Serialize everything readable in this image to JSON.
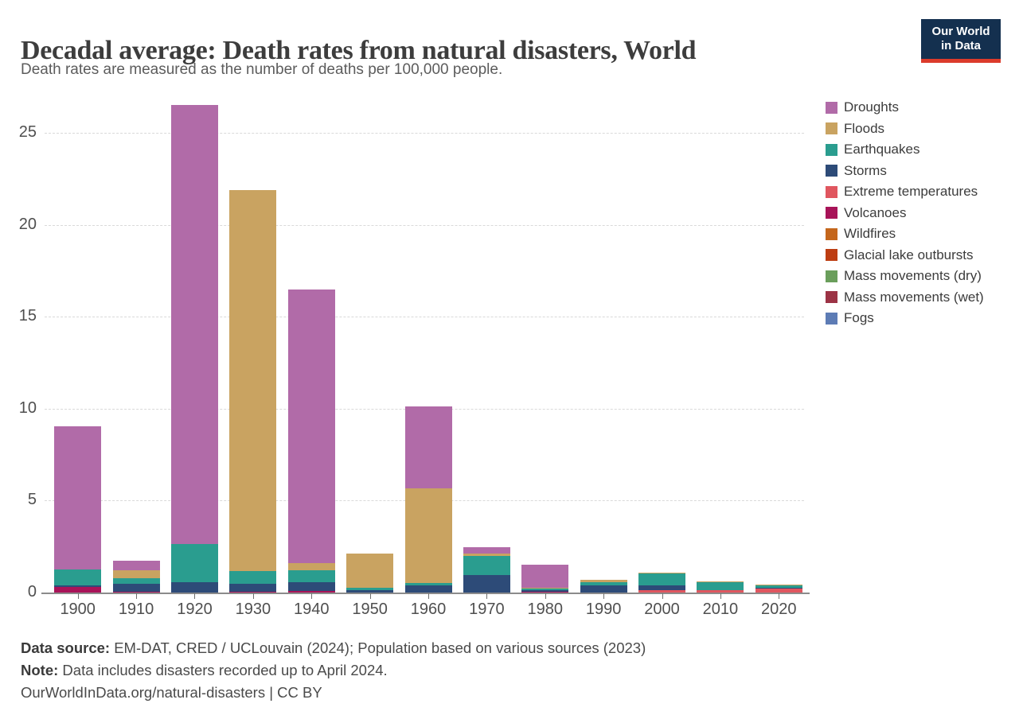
{
  "header": {
    "title": "Decadal average: Death rates from natural disasters, World",
    "subtitle": "Death rates are measured as the number of deaths per 100,000 people.",
    "logo": {
      "line1": "Our World",
      "line2": "in Data",
      "bg_color": "#14304f",
      "accent_color": "#dc3b2b"
    }
  },
  "chart_data": {
    "type": "bar",
    "stacked": true,
    "title": "Decadal average: Death rates from natural disasters, World",
    "xlabel": "",
    "ylabel": "Deaths per 100,000 people",
    "ylim": [
      0,
      26.6
    ],
    "yticks": [
      0,
      5,
      10,
      15,
      20,
      25
    ],
    "grid": "horizontal-dashed",
    "legend_position": "right",
    "categories": [
      "1900",
      "1910",
      "1920",
      "1930",
      "1940",
      "1950",
      "1960",
      "1970",
      "1980",
      "1990",
      "2000",
      "2010",
      "2020"
    ],
    "stack_order_bottom_to_top": [
      "Fogs",
      "Mass movements (wet)",
      "Mass movements (dry)",
      "Glacial lake outbursts",
      "Wildfires",
      "Volcanoes",
      "Extreme temperatures",
      "Storms",
      "Earthquakes",
      "Floods",
      "Droughts"
    ],
    "series": [
      {
        "label": "Droughts",
        "color": "#b16ba8",
        "values": [
          7.76,
          0.5,
          23.85,
          0,
          14.92,
          0,
          4.42,
          0.33,
          1.23,
          0,
          0,
          0,
          0
        ]
      },
      {
        "label": "Floods",
        "color": "#c9a361",
        "values": [
          0,
          0.47,
          0,
          20.74,
          0.38,
          1.86,
          5.16,
          0.15,
          0.06,
          0.13,
          0.05,
          0.06,
          0.04
        ]
      },
      {
        "label": "Earthquakes",
        "color": "#2a9d8f",
        "values": [
          0.87,
          0.3,
          2.08,
          0.67,
          0.62,
          0.12,
          0.12,
          1.03,
          0.07,
          0.15,
          0.65,
          0.42,
          0.12
        ]
      },
      {
        "label": "Storms",
        "color": "#2d4b78",
        "values": [
          0.09,
          0.42,
          0.57,
          0.44,
          0.5,
          0.14,
          0.4,
          0.94,
          0.09,
          0.4,
          0.25,
          0,
          0.06
        ]
      },
      {
        "label": "Extreme temperatures",
        "color": "#e0565f",
        "values": [
          0,
          0,
          0,
          0,
          0,
          0,
          0,
          0,
          0,
          0,
          0.15,
          0.14,
          0.2
        ]
      },
      {
        "label": "Volcanoes",
        "color": "#a81358",
        "values": [
          0.3,
          0.04,
          0,
          0.04,
          0.08,
          0,
          0,
          0,
          0.06,
          0,
          0,
          0,
          0
        ]
      },
      {
        "label": "Wildfires",
        "color": "#c4661c",
        "values": [
          0,
          0,
          0,
          0,
          0,
          0,
          0,
          0,
          0,
          0,
          0,
          0,
          0
        ]
      },
      {
        "label": "Glacial lake outbursts",
        "color": "#bd3d12",
        "values": [
          0,
          0,
          0,
          0,
          0,
          0,
          0,
          0,
          0,
          0,
          0,
          0,
          0
        ]
      },
      {
        "label": "Mass movements (dry)",
        "color": "#6a9e5b",
        "values": [
          0,
          0,
          0,
          0,
          0,
          0,
          0,
          0,
          0,
          0,
          0,
          0,
          0
        ]
      },
      {
        "label": "Mass movements (wet)",
        "color": "#9c3345",
        "values": [
          0,
          0,
          0,
          0,
          0,
          0,
          0,
          0,
          0,
          0,
          0,
          0,
          0
        ]
      },
      {
        "label": "Fogs",
        "color": "#5d7cb5",
        "values": [
          0,
          0,
          0,
          0,
          0,
          0,
          0,
          0,
          0,
          0,
          0,
          0,
          0
        ]
      }
    ],
    "totals_by_decade": [
      9.02,
      1.73,
      26.5,
      21.89,
      16.5,
      2.12,
      10.1,
      2.45,
      1.51,
      0.68,
      1.1,
      0.62,
      0.42
    ]
  },
  "footer": {
    "source_label": "Data source:",
    "source_text": " EM-DAT, CRED / UCLouvain (2024); Population based on various sources (2023)",
    "note_label": "Note:",
    "note_text": " Data includes disasters recorded up to April 2024.",
    "attribution": "OurWorldInData.org/natural-disasters | CC BY"
  }
}
